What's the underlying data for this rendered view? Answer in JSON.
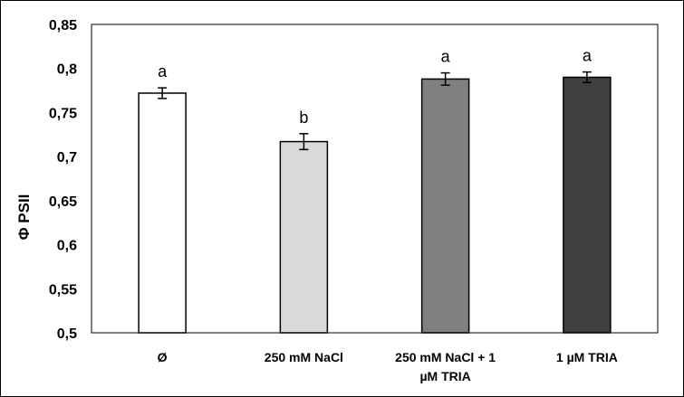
{
  "chart_data": {
    "type": "bar",
    "title": "",
    "xlabel": "",
    "ylabel": "Φ PSII",
    "ylim": [
      0.5,
      0.85
    ],
    "yticks": [
      0.5,
      0.55,
      0.6,
      0.65,
      0.7,
      0.75,
      0.8,
      0.85
    ],
    "ytick_labels": [
      "0,5",
      "0,55",
      "0,6",
      "0,65",
      "0,7",
      "0,75",
      "0,8",
      "0,85"
    ],
    "grid": false,
    "legend": "none",
    "categories": [
      [
        "Ø"
      ],
      [
        "250 mM NaCl"
      ],
      [
        "250 mM NaCl + 1",
        "µM TRIA"
      ],
      [
        "1 µM TRIA"
      ]
    ],
    "values": [
      0.772,
      0.717,
      0.788,
      0.79
    ],
    "errors": [
      0.006,
      0.009,
      0.007,
      0.006
    ],
    "significance": [
      "a",
      "b",
      "a",
      "a"
    ],
    "colors": [
      "#ffffff",
      "#d9d9d9",
      "#808080",
      "#404040"
    ]
  }
}
